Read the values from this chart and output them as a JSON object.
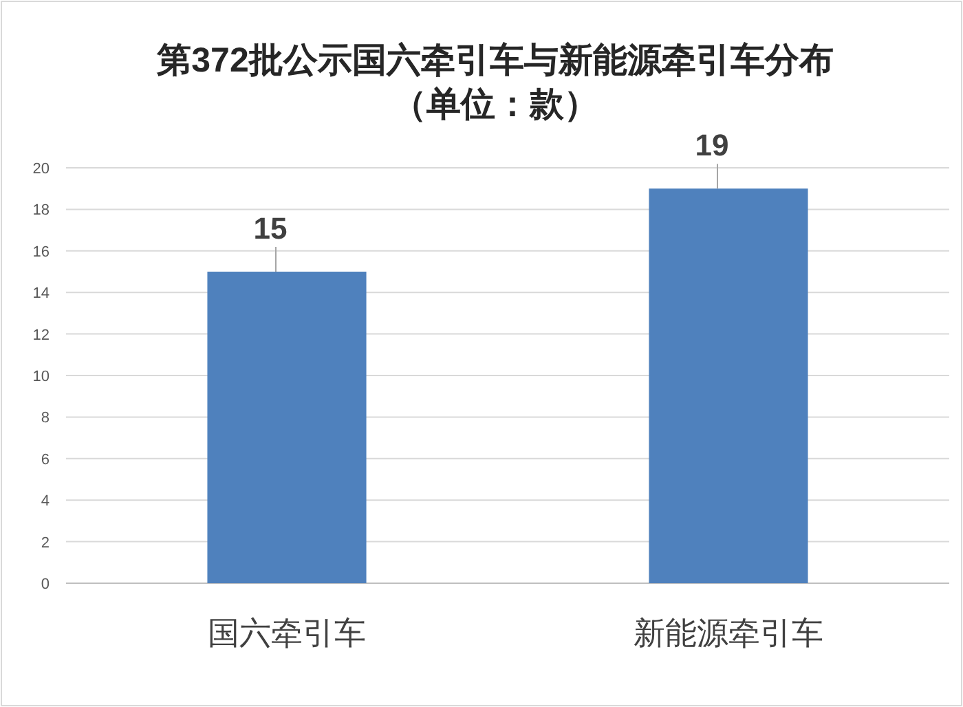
{
  "chart_data": {
    "type": "bar",
    "title": "第372批公示国六牵引车与新能源牵引车分布",
    "subtitle": "（单位：款）",
    "categories": [
      "国六牵引车",
      "新能源牵引车"
    ],
    "values": [
      15,
      19
    ],
    "color": "#4f81bd",
    "ylim": [
      0,
      20
    ],
    "yticks": [
      0,
      2,
      4,
      6,
      8,
      10,
      12,
      14,
      16,
      18,
      20
    ],
    "grid": "y",
    "data_labels": true
  }
}
